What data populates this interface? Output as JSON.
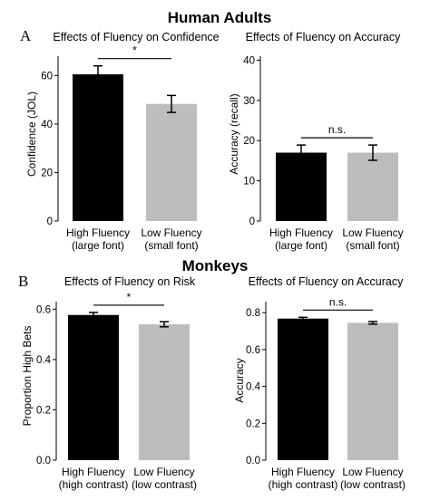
{
  "figure": {
    "section_a_title": "Human Adults",
    "section_a_letter": "A",
    "section_b_title": "Monkeys",
    "section_b_letter": "B"
  },
  "chart_data": [
    {
      "type": "bar",
      "title": "Effects of Fluency on Confidence",
      "ylabel": "Confidence (JOL)",
      "xlabel": "",
      "ylim": [
        0,
        68
      ],
      "yticks": [
        0,
        20,
        40,
        60
      ],
      "tick_labels": [
        "0",
        "20",
        "40",
        "60"
      ],
      "categories": [
        [
          "High Fluency",
          "(large font)"
        ],
        [
          "Low Fluency",
          "(small font)"
        ]
      ],
      "values": [
        60.5,
        48.3
      ],
      "errors": [
        3.5,
        3.5
      ],
      "colors": [
        "#000000",
        "#bdbdbd"
      ],
      "significance": "*"
    },
    {
      "type": "bar",
      "title": "Effects of Fluency on Accuracy",
      "ylabel": "Accuracy (recall)",
      "xlabel": "",
      "ylim": [
        0,
        41
      ],
      "yticks": [
        0,
        10,
        20,
        30,
        40
      ],
      "tick_labels": [
        "0",
        "10",
        "20",
        "30",
        "40"
      ],
      "categories": [
        [
          "High Fluency",
          "(large font)"
        ],
        [
          "Low Fluency",
          "(small font)"
        ]
      ],
      "values": [
        17.0,
        17.0
      ],
      "errors": [
        1.9,
        1.9
      ],
      "colors": [
        "#000000",
        "#bdbdbd"
      ],
      "significance": "n.s."
    },
    {
      "type": "bar",
      "title": "Effects of Fluency on Risk",
      "ylabel": "Proportion High Bets",
      "xlabel": "",
      "ylim": [
        0,
        0.63
      ],
      "yticks": [
        0,
        0.2,
        0.4,
        0.6
      ],
      "tick_labels": [
        "0.0",
        "0.2",
        "0.4",
        "0.6"
      ],
      "categories": [
        [
          "High Fluency",
          "(high contrast)"
        ],
        [
          "Low Fluency",
          "(low contrast)"
        ]
      ],
      "values": [
        0.577,
        0.54
      ],
      "errors": [
        0.01,
        0.01
      ],
      "colors": [
        "#000000",
        "#bdbdbd"
      ],
      "significance": "*"
    },
    {
      "type": "bar",
      "title": "Effects of Fluency on Accuracy",
      "ylabel": "Accuracy",
      "xlabel": "",
      "ylim": [
        0,
        0.86
      ],
      "yticks": [
        0,
        0.2,
        0.4,
        0.6,
        0.8
      ],
      "tick_labels": [
        "0.0",
        "0.2",
        "0.4",
        "0.6",
        "0.8"
      ],
      "categories": [
        [
          "High Fluency",
          "(high contrast)"
        ],
        [
          "Low Fluency",
          "(low contrast)"
        ]
      ],
      "values": [
        0.768,
        0.745
      ],
      "errors": [
        0.007,
        0.007
      ],
      "colors": [
        "#000000",
        "#bdbdbd"
      ],
      "significance": "n.s."
    }
  ]
}
